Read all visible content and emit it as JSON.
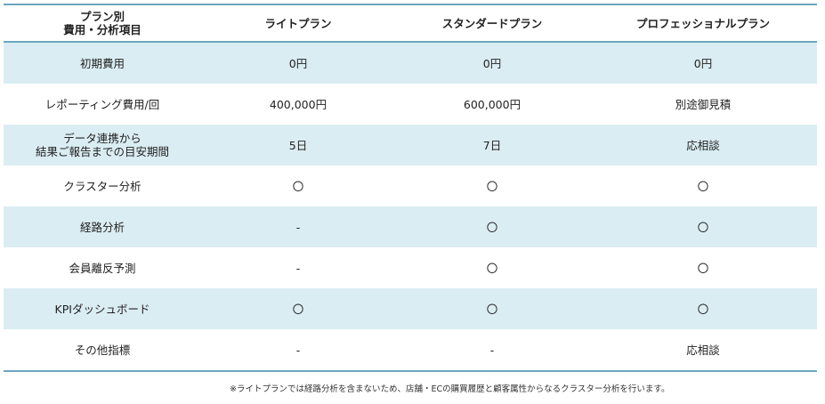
{
  "header": {
    "col0": "プラン別\n費用・分析項目",
    "col1": "ライトプラン",
    "col2": "スタンダードプラン",
    "col3": "プロフェッショナルプラン"
  },
  "rows": [
    {
      "label": "初期費用",
      "light": "0円",
      "standard": "0円",
      "pro": "0円"
    },
    {
      "label": "レポーティング費用/回",
      "light": "400,000円",
      "standard": "600,000円",
      "pro": "別途御見積"
    },
    {
      "label": "データ連携から\n結果ご報告までの目安期間",
      "light": "5日",
      "standard": "7日",
      "pro": "応相談"
    },
    {
      "label": "クラスター分析",
      "light": "〇",
      "standard": "〇",
      "pro": "〇"
    },
    {
      "label": "経路分析",
      "light": "-",
      "standard": "〇",
      "pro": "〇"
    },
    {
      "label": "会員離反予測",
      "light": "-",
      "standard": "〇",
      "pro": "〇"
    },
    {
      "label": "KPIダッシュボード",
      "light": "〇",
      "standard": "〇",
      "pro": "〇"
    },
    {
      "label": "その他指標",
      "light": "-",
      "standard": "-",
      "pro": "応相談"
    }
  ],
  "footnote": "※ライトプランでは経路分析を含まないため、店舗・ECの購買履歴と顧客属性からなるクラスター分析を行います。"
}
